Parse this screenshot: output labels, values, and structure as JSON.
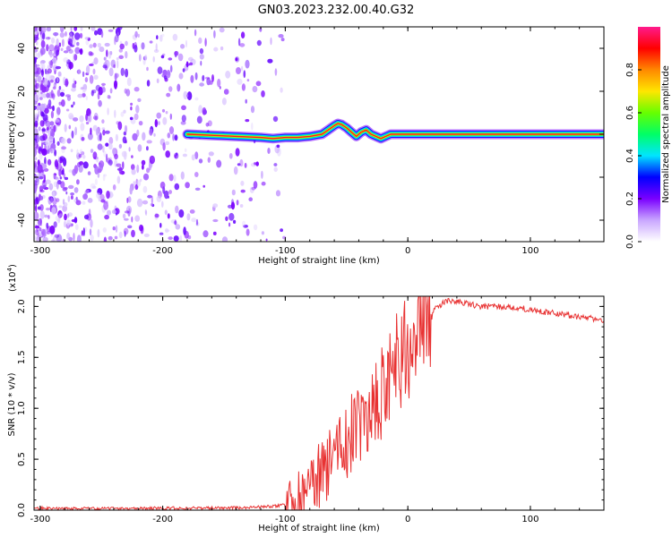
{
  "figure_title": "GN03.2023.232.00.40.G32",
  "chart_data": [
    {
      "type": "heatmap",
      "title": "",
      "xlabel": "Height of straight line (km)",
      "ylabel": "Frequency (Hz)",
      "xlim": [
        -305,
        160
      ],
      "ylim": [
        -50,
        50
      ],
      "xticks": [
        -300,
        -200,
        -100,
        0,
        100
      ],
      "yticks": [
        -40,
        -20,
        0,
        20,
        40
      ],
      "colorbar": {
        "label": "Normalized spectral amplitude",
        "range": [
          0,
          1
        ],
        "ticks": [
          "0.0",
          "0.2",
          "0.4",
          "0.6",
          "0.8"
        ],
        "colors": [
          "#ffffff",
          "#c9a6ff",
          "#7a00ff",
          "#0000ff",
          "#00e5ff",
          "#00ff66",
          "#66ff00",
          "#ffe600",
          "#ff8800",
          "#ff0000",
          "#ff1a8c"
        ]
      },
      "noise_region_km": [
        -305,
        -110
      ],
      "ridge": {
        "x": [
          -180,
          -160,
          -140,
          -120,
          -110,
          -100,
          -90,
          -80,
          -75,
          -70,
          -65,
          -60,
          -57,
          -54,
          -50,
          -46,
          -42,
          -38,
          -34,
          -30,
          -26,
          -22,
          -18,
          -14,
          -10,
          0,
          20,
          40,
          80,
          120,
          160
        ],
        "y": [
          0,
          -0.5,
          -1,
          -1.5,
          -2,
          -1.5,
          -1.5,
          -1,
          -0.5,
          0,
          2,
          4,
          5,
          4.5,
          3,
          1,
          -1,
          1,
          2,
          0,
          -1,
          -2,
          -1,
          0,
          0,
          0,
          0,
          0,
          0,
          0,
          0
        ]
      }
    },
    {
      "type": "line",
      "title": "",
      "xlabel": "Height of straight line (km)",
      "ylabel": "SNR (10 * v/v)",
      "y_multiplier": "(x10",
      "y_multiplier_exp": "4",
      "y_multiplier_close": ")",
      "xlim": [
        -305,
        160
      ],
      "ylim": [
        0,
        2.1
      ],
      "xticks": [
        -300,
        -200,
        -100,
        0,
        100
      ],
      "yticks": [
        "0.0",
        "0.5",
        "1.0",
        "1.5",
        "2.0"
      ],
      "color": "#e83232",
      "series": [
        {
          "x": [
            -305,
            -250,
            -200,
            -150,
            -120,
            -100,
            -90,
            -80,
            -75,
            -70,
            -65,
            -60,
            -55,
            -50,
            -45,
            -40,
            -35,
            -30,
            -25,
            -20,
            -15,
            -10,
            -5,
            0,
            10,
            20,
            30,
            40,
            50,
            60,
            80,
            100,
            120,
            140,
            160
          ],
          "y": [
            0.02,
            0.015,
            0.02,
            0.02,
            0.03,
            0.05,
            0.1,
            0.2,
            0.3,
            0.35,
            0.45,
            0.55,
            0.6,
            0.7,
            0.8,
            0.9,
            0.95,
            1.0,
            1.1,
            1.2,
            1.3,
            1.4,
            1.5,
            1.6,
            1.8,
            1.95,
            2.05,
            2.05,
            2.02,
            2.0,
            2.0,
            1.97,
            1.93,
            1.9,
            1.87
          ]
        }
      ]
    }
  ]
}
